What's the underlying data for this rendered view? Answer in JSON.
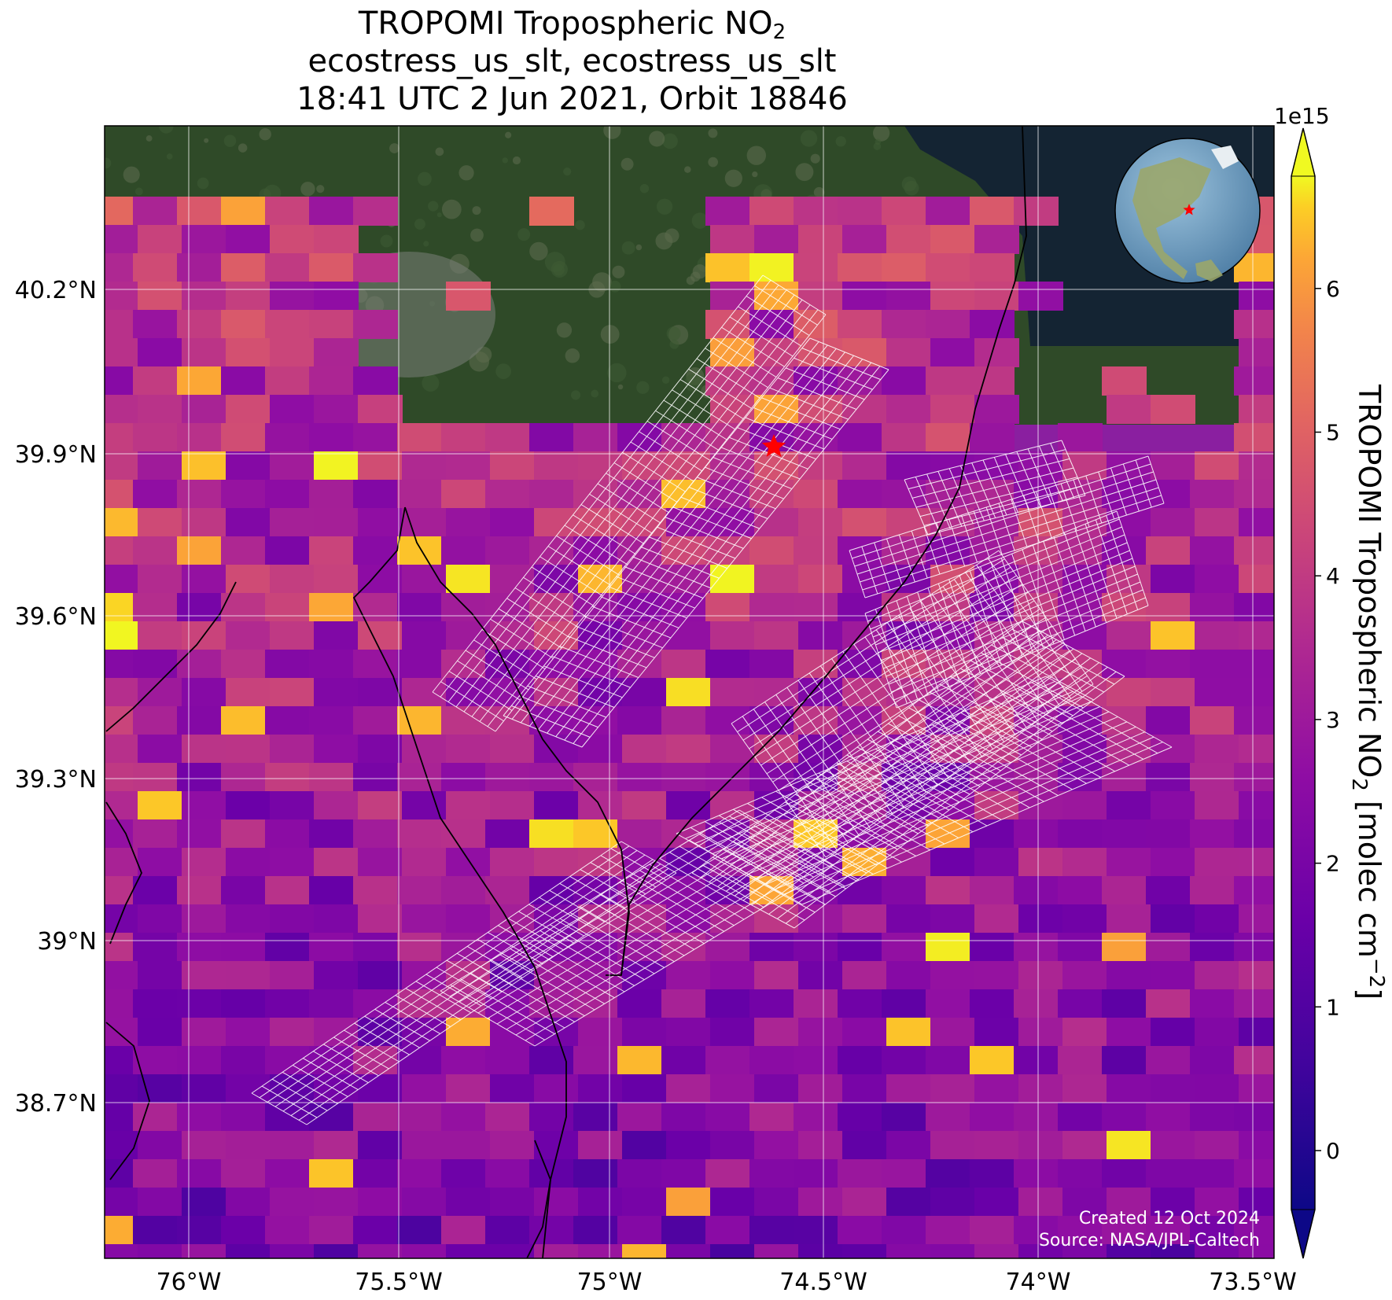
{
  "title": {
    "line1_main": "TROPOMI Tropospheric NO",
    "line1_sub": "2",
    "line2": "ecostress_us_slt, ecostress_us_slt",
    "line3": "18:41 UTC 2 Jun 2021, Orbit 18846"
  },
  "map": {
    "lon_ticks": [
      "76°W",
      "75.5°W",
      "75°W",
      "74.5°W",
      "74°W",
      "73.5°W"
    ],
    "lat_ticks": [
      "40.2°N",
      "39.9°N",
      "39.6°N",
      "39.3°N",
      "39°N",
      "38.7°N"
    ],
    "marker": "red-star",
    "inset": "globe-locator"
  },
  "colorbar": {
    "exponent": "1e15",
    "ticks": [
      "0",
      "1",
      "2",
      "3",
      "4",
      "5",
      "6"
    ],
    "label_main": "TROPOMI Tropospheric NO",
    "label_sub": "2",
    "label_units": " [molec cm",
    "label_sup": "−2",
    "label_end": "]",
    "colormap": "plasma"
  },
  "credits": {
    "created": "Created 12 Oct 2024",
    "source": "Source: NASA/JPL-Caltech"
  },
  "colors": {
    "grid": "#ffffff",
    "coast": "#000000",
    "marker": "#ff0000",
    "ocean_dark": "#142433",
    "land_dark": "#2f4a28"
  }
}
